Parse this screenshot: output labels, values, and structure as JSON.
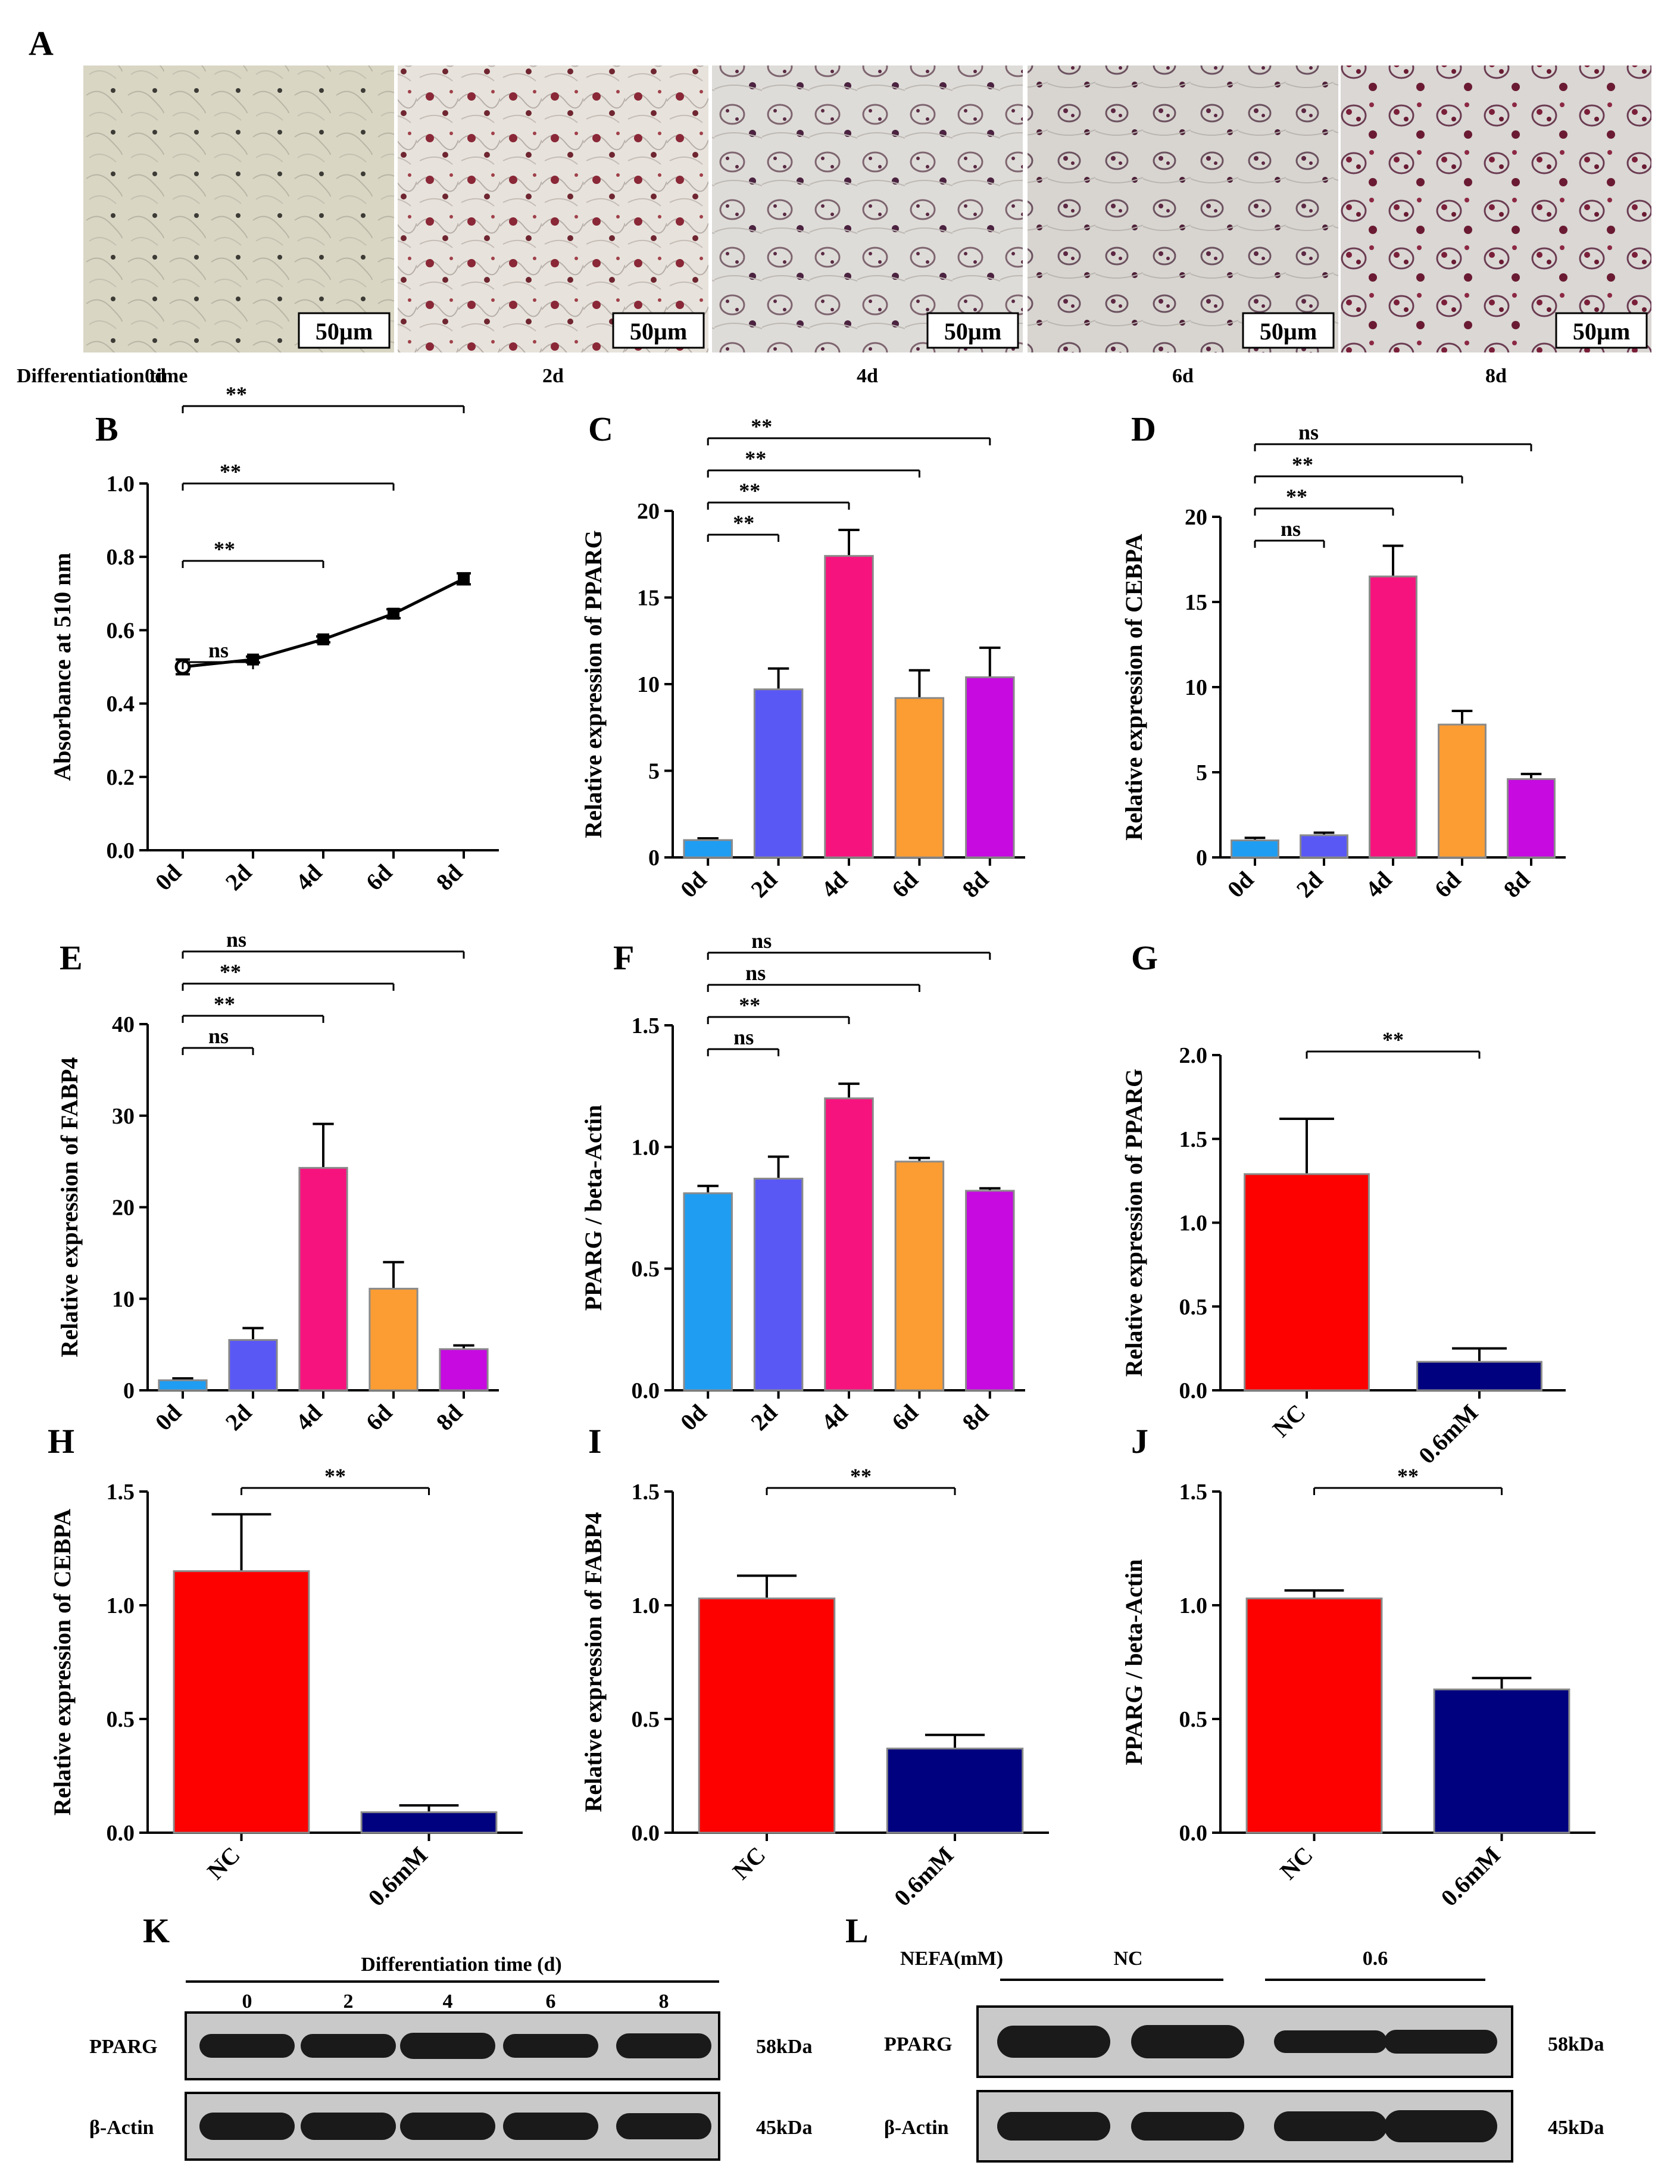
{
  "micrographs": {
    "panel_label": "A",
    "row_label": "Differentiation time",
    "scale_bar": "50µm",
    "times": [
      "0d",
      "2d",
      "4d",
      "6d",
      "8d"
    ]
  },
  "colors": {
    "d0": "#1f9df2",
    "d2": "#5a58f5",
    "d4": "#f7137e",
    "d6": "#fb9d33",
    "d8": "#c60ae0",
    "nc": "#fd0000",
    "treat": "#00017f"
  },
  "chart_data": [
    {
      "id": "B",
      "type": "line",
      "label": "B",
      "ylabel": "Absorbance  at  510  nm",
      "categories": [
        "0d",
        "2d",
        "4d",
        "6d",
        "8d"
      ],
      "values": [
        0.5,
        0.52,
        0.575,
        0.645,
        0.74
      ],
      "errors": [
        0.02,
        0.008,
        0.008,
        0.012,
        0.015
      ],
      "ylim": [
        0,
        1.0
      ],
      "yticks": [
        "0.0",
        "0.2",
        "0.4",
        "0.6",
        "0.8",
        "1.0"
      ],
      "sig": [
        {
          "from": 0,
          "to": 1,
          "label": "ns"
        },
        {
          "from": 0,
          "to": 2,
          "label": "**"
        },
        {
          "from": 0,
          "to": 3,
          "label": "**"
        },
        {
          "from": 0,
          "to": 4,
          "label": "**"
        }
      ]
    },
    {
      "id": "C",
      "type": "bar",
      "label": "C",
      "ylabel": "Relative expression of PPARG",
      "categories": [
        "0d",
        "2d",
        "4d",
        "6d",
        "8d"
      ],
      "values": [
        1.0,
        9.7,
        17.4,
        9.2,
        10.4
      ],
      "errors": [
        0.1,
        1.2,
        1.5,
        1.6,
        1.7
      ],
      "ylim": [
        0,
        20
      ],
      "yticks": [
        "0",
        "5",
        "10",
        "15",
        "20"
      ],
      "sig": [
        {
          "from": 0,
          "to": 1,
          "label": "**"
        },
        {
          "from": 0,
          "to": 2,
          "label": "**"
        },
        {
          "from": 0,
          "to": 3,
          "label": "**"
        },
        {
          "from": 0,
          "to": 4,
          "label": "**"
        }
      ]
    },
    {
      "id": "D",
      "type": "bar",
      "label": "D",
      "ylabel": "Relative expression of CEBPA",
      "categories": [
        "0d",
        "2d",
        "4d",
        "6d",
        "8d"
      ],
      "values": [
        1.0,
        1.3,
        16.5,
        7.8,
        4.6
      ],
      "errors": [
        0.15,
        0.15,
        1.8,
        0.8,
        0.3
      ],
      "ylim": [
        0,
        20
      ],
      "yticks": [
        "0",
        "5",
        "10",
        "15",
        "20"
      ],
      "sig": [
        {
          "from": 0,
          "to": 1,
          "label": "ns"
        },
        {
          "from": 0,
          "to": 2,
          "label": "**"
        },
        {
          "from": 0,
          "to": 3,
          "label": "**"
        },
        {
          "from": 0,
          "to": 4,
          "label": "ns"
        }
      ]
    },
    {
      "id": "E",
      "type": "bar",
      "label": "E",
      "ylabel": "Relative expression of FABP4",
      "categories": [
        "0d",
        "2d",
        "4d",
        "6d",
        "8d"
      ],
      "values": [
        1.1,
        5.5,
        24.3,
        11.1,
        4.5
      ],
      "errors": [
        0.2,
        1.3,
        4.8,
        2.9,
        0.4
      ],
      "ylim": [
        0,
        40
      ],
      "yticks": [
        "0",
        "10",
        "20",
        "30",
        "40"
      ],
      "sig": [
        {
          "from": 0,
          "to": 1,
          "label": "ns"
        },
        {
          "from": 0,
          "to": 2,
          "label": "**"
        },
        {
          "from": 0,
          "to": 3,
          "label": "**"
        },
        {
          "from": 0,
          "to": 4,
          "label": "ns"
        }
      ]
    },
    {
      "id": "F",
      "type": "bar",
      "label": "F",
      "ylabel": "PPARG / beta-Actin",
      "categories": [
        "0d",
        "2d",
        "4d",
        "6d",
        "8d"
      ],
      "values": [
        0.81,
        0.87,
        1.2,
        0.94,
        0.82
      ],
      "errors": [
        0.03,
        0.09,
        0.06,
        0.015,
        0.01
      ],
      "ylim": [
        0,
        1.5
      ],
      "yticks": [
        "0.0",
        "0.5",
        "1.0",
        "1.5"
      ],
      "sig": [
        {
          "from": 0,
          "to": 1,
          "label": "ns"
        },
        {
          "from": 0,
          "to": 2,
          "label": "**"
        },
        {
          "from": 0,
          "to": 3,
          "label": "ns"
        },
        {
          "from": 0,
          "to": 4,
          "label": "ns"
        }
      ]
    },
    {
      "id": "G",
      "type": "bar",
      "label": "G",
      "ylabel": "Relative expression of PPARG",
      "categories": [
        "NC",
        "0.6mM"
      ],
      "values": [
        1.29,
        0.17
      ],
      "errors": [
        0.33,
        0.08
      ],
      "ylim": [
        0,
        2.0
      ],
      "yticks": [
        "0.0",
        "0.5",
        "1.0",
        "1.5",
        "2.0"
      ],
      "sig": [
        {
          "from": 0,
          "to": 1,
          "label": "**"
        }
      ]
    },
    {
      "id": "H",
      "type": "bar",
      "label": "H",
      "ylabel": "Relative expression of CEBPA",
      "categories": [
        "NC",
        "0.6mM"
      ],
      "values": [
        1.15,
        0.09
      ],
      "errors": [
        0.25,
        0.03
      ],
      "ylim": [
        0,
        1.5
      ],
      "yticks": [
        "0.0",
        "0.5",
        "1.0",
        "1.5"
      ],
      "sig": [
        {
          "from": 0,
          "to": 1,
          "label": "**"
        }
      ]
    },
    {
      "id": "I",
      "type": "bar",
      "label": "I",
      "ylabel": "Relative expression of FABP4",
      "categories": [
        "NC",
        "0.6mM"
      ],
      "values": [
        1.03,
        0.37
      ],
      "errors": [
        0.1,
        0.06
      ],
      "ylim": [
        0,
        1.5
      ],
      "yticks": [
        "0.0",
        "0.5",
        "1.0",
        "1.5"
      ],
      "sig": [
        {
          "from": 0,
          "to": 1,
          "label": "**"
        }
      ]
    },
    {
      "id": "J",
      "type": "bar",
      "label": "J",
      "ylabel": "PPARG / beta-Actin",
      "categories": [
        "NC",
        "0.6mM"
      ],
      "values": [
        1.03,
        0.63
      ],
      "errors": [
        0.035,
        0.05
      ],
      "ylim": [
        0,
        1.5
      ],
      "yticks": [
        "0.0",
        "0.5",
        "1.0",
        "1.5"
      ],
      "sig": [
        {
          "from": 0,
          "to": 1,
          "label": "**"
        }
      ]
    }
  ],
  "blots": {
    "K": {
      "label": "K",
      "header": "Differentiation time (d)",
      "lanes": [
        "0",
        "2",
        "4",
        "6",
        "8"
      ],
      "rows": [
        {
          "name": "PPARG",
          "size": "58kDa"
        },
        {
          "name": "β-Actin",
          "size": "45kDa"
        }
      ]
    },
    "L": {
      "label": "L",
      "header": "NEFA(mM)",
      "groups": [
        "NC",
        "0.6"
      ],
      "rows": [
        {
          "name": "PPARG",
          "size": "58kDa"
        },
        {
          "name": "β-Actin",
          "size": "45kDa"
        }
      ]
    }
  }
}
